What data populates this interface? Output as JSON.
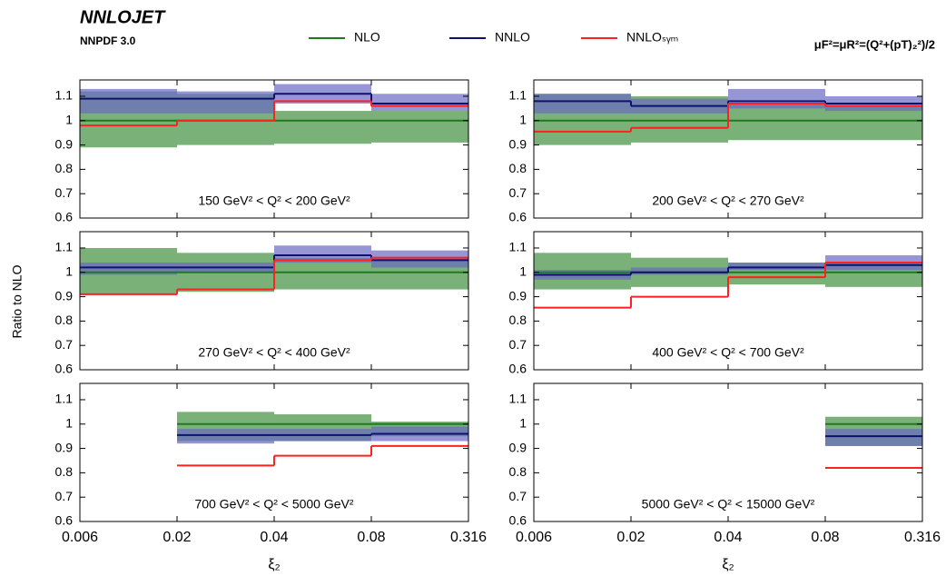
{
  "figure": {
    "title": "NNLOJET",
    "subtitle": "NNPDF 3.0",
    "scale_label": "μF²=μR²=(Q²+(pT)₂²)/2",
    "ylabel": "Ratio to NLO",
    "xlabel": "ξ₂",
    "legend": [
      {
        "name": "NLO",
        "color": "#1f7a1f",
        "band_color": "#6aa86a"
      },
      {
        "name": "NNLO",
        "color": "#10106e",
        "band_color": "#6a6ac4"
      },
      {
        "name": "NNLOₛᵧₘ",
        "color": "#ff2020"
      }
    ]
  },
  "chart_data": [
    {
      "type": "step",
      "label": "150 GeV² < Q² < 200 GeV²",
      "bin_edges": [
        0.006,
        0.02,
        0.04,
        0.08,
        0.316
      ],
      "ylim": [
        0.6,
        1.167
      ],
      "yticks": [
        0.6,
        0.7,
        0.8,
        0.9,
        1,
        1.1
      ],
      "series": [
        {
          "values": [
            1,
            1,
            1,
            1
          ],
          "lower": [
            0.89,
            0.9,
            0.905,
            0.91
          ],
          "upper": [
            1.12,
            1.11,
            1.04,
            1.04
          ]
        },
        {
          "values": [
            1.09,
            1.09,
            1.11,
            1.07
          ],
          "lower": [
            1.03,
            1.03,
            1.07,
            1.04
          ],
          "upper": [
            1.13,
            1.12,
            1.15,
            1.11
          ]
        },
        {
          "values": [
            0.98,
            1.0,
            1.08,
            1.06
          ]
        }
      ]
    },
    {
      "type": "step",
      "label": "200 GeV² < Q² < 270 GeV²",
      "bin_edges": [
        0.006,
        0.02,
        0.04,
        0.08,
        0.316
      ],
      "ylim": [
        0.6,
        1.167
      ],
      "yticks": [
        0.6,
        0.7,
        0.8,
        0.9,
        1,
        1.1
      ],
      "series": [
        {
          "values": [
            1,
            1,
            1,
            1
          ],
          "lower": [
            0.9,
            0.91,
            0.92,
            0.92
          ],
          "upper": [
            1.11,
            1.1,
            1.07,
            1.06
          ]
        },
        {
          "values": [
            1.08,
            1.06,
            1.08,
            1.07
          ],
          "lower": [
            1.03,
            1.03,
            1.05,
            1.04
          ],
          "upper": [
            1.11,
            1.09,
            1.13,
            1.1
          ]
        },
        {
          "values": [
            0.955,
            0.97,
            1.07,
            1.06
          ]
        }
      ]
    },
    {
      "type": "step",
      "label": "270 GeV² < Q² < 400 GeV²",
      "bin_edges": [
        0.006,
        0.02,
        0.04,
        0.08,
        0.316
      ],
      "ylim": [
        0.6,
        1.167
      ],
      "yticks": [
        0.6,
        0.7,
        0.8,
        0.9,
        1,
        1.1
      ],
      "series": [
        {
          "values": [
            1,
            1,
            1,
            1
          ],
          "lower": [
            0.91,
            0.92,
            0.93,
            0.93
          ],
          "upper": [
            1.1,
            1.08,
            1.06,
            1.06
          ]
        },
        {
          "values": [
            1.02,
            1.02,
            1.07,
            1.05
          ],
          "lower": [
            0.99,
            1.0,
            1.04,
            1.02
          ],
          "upper": [
            1.04,
            1.04,
            1.11,
            1.09
          ]
        },
        {
          "values": [
            0.91,
            0.93,
            1.05,
            1.06
          ]
        }
      ]
    },
    {
      "type": "step",
      "label": "400 GeV² < Q² < 700 GeV²",
      "bin_edges": [
        0.006,
        0.02,
        0.04,
        0.08,
        0.316
      ],
      "ylim": [
        0.6,
        1.167
      ],
      "yticks": [
        0.6,
        0.7,
        0.8,
        0.9,
        1,
        1.1
      ],
      "series": [
        {
          "values": [
            1,
            1,
            1,
            1
          ],
          "lower": [
            0.93,
            0.94,
            0.95,
            0.94
          ],
          "upper": [
            1.08,
            1.06,
            1.04,
            1.04
          ]
        },
        {
          "values": [
            0.99,
            1.0,
            1.02,
            1.03
          ],
          "lower": [
            0.97,
            0.99,
            1.01,
            1.01
          ],
          "upper": [
            1.01,
            1.02,
            1.04,
            1.07
          ]
        },
        {
          "values": [
            0.855,
            0.9,
            0.98,
            1.04
          ]
        }
      ]
    },
    {
      "type": "step",
      "label": "700 GeV² < Q² < 5000 GeV²",
      "bin_edges": [
        0.006,
        0.02,
        0.04,
        0.08,
        0.316
      ],
      "ylim": [
        0.6,
        1.167
      ],
      "yticks": [
        0.6,
        0.7,
        0.8,
        0.9,
        1,
        1.1
      ],
      "series": [
        {
          "values": [
            null,
            1,
            1,
            1
          ],
          "lower": [
            null,
            0.93,
            0.93,
            0.95
          ],
          "upper": [
            null,
            1.05,
            1.04,
            1.01
          ]
        },
        {
          "values": [
            null,
            0.955,
            0.955,
            0.96
          ],
          "lower": [
            null,
            0.92,
            0.93,
            0.93
          ],
          "upper": [
            null,
            0.98,
            0.98,
            0.99
          ]
        },
        {
          "values": [
            null,
            0.83,
            0.87,
            0.91
          ]
        }
      ]
    },
    {
      "type": "step",
      "label": "5000 GeV² < Q² < 15000 GeV²",
      "bin_edges": [
        0.006,
        0.02,
        0.04,
        0.08,
        0.316
      ],
      "ylim": [
        0.6,
        1.167
      ],
      "yticks": [
        0.6,
        0.7,
        0.8,
        0.9,
        1,
        1.1
      ],
      "series": [
        {
          "values": [
            null,
            null,
            null,
            1
          ],
          "lower": [
            null,
            null,
            null,
            0.91
          ],
          "upper": [
            null,
            null,
            null,
            1.03
          ]
        },
        {
          "values": [
            null,
            null,
            null,
            0.95
          ],
          "lower": [
            null,
            null,
            null,
            0.91
          ],
          "upper": [
            null,
            null,
            null,
            0.98
          ]
        },
        {
          "values": [
            null,
            null,
            null,
            0.82
          ]
        }
      ]
    }
  ]
}
